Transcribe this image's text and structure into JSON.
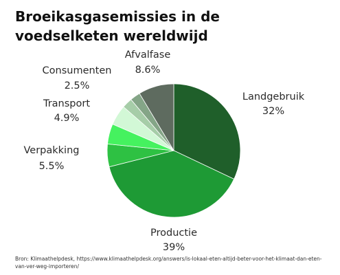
{
  "title": "Broeikasgasemissies in de voedselketen wereldwijd",
  "source": "Bron: Klimaathelpdesk, https://www.klimaathelpdesk.org/answers/is-lokaal-eten-altijd-beter-voor-het-klimaat-dan-eten-van-ver-weg-importeren/",
  "chart_data": {
    "type": "pie",
    "title": "Broeikasgasemissies in de voedselketen wereldwijd",
    "start": "12 o'clock",
    "direction": "clockwise",
    "legend": "none",
    "slices": [
      {
        "label": "Landgebruik",
        "value": 32,
        "display": "32%",
        "color": "#1f5f2a"
      },
      {
        "label": "Productie",
        "value": 39,
        "display": "39%",
        "color": "#1e9a35"
      },
      {
        "label": "Verpakking",
        "value": 5.5,
        "display": "5.5%",
        "color": "#2ec143"
      },
      {
        "label": "Transport",
        "value": 4.9,
        "display": "4.9%",
        "color": "#45f25f"
      },
      {
        "label": "Transport",
        "value": 4.9,
        "display": "",
        "color": "#d2f8d6"
      },
      {
        "label": "Consumenten",
        "value": 2.5,
        "display": "",
        "color": "#a6cda8"
      },
      {
        "label": "Consumenten",
        "value": 2.5,
        "display": "2.5%",
        "color": "#84a587"
      },
      {
        "label": "Afvalfase",
        "value": 8.6,
        "display": "8.6%",
        "color": "#5e6b5f"
      }
    ]
  }
}
